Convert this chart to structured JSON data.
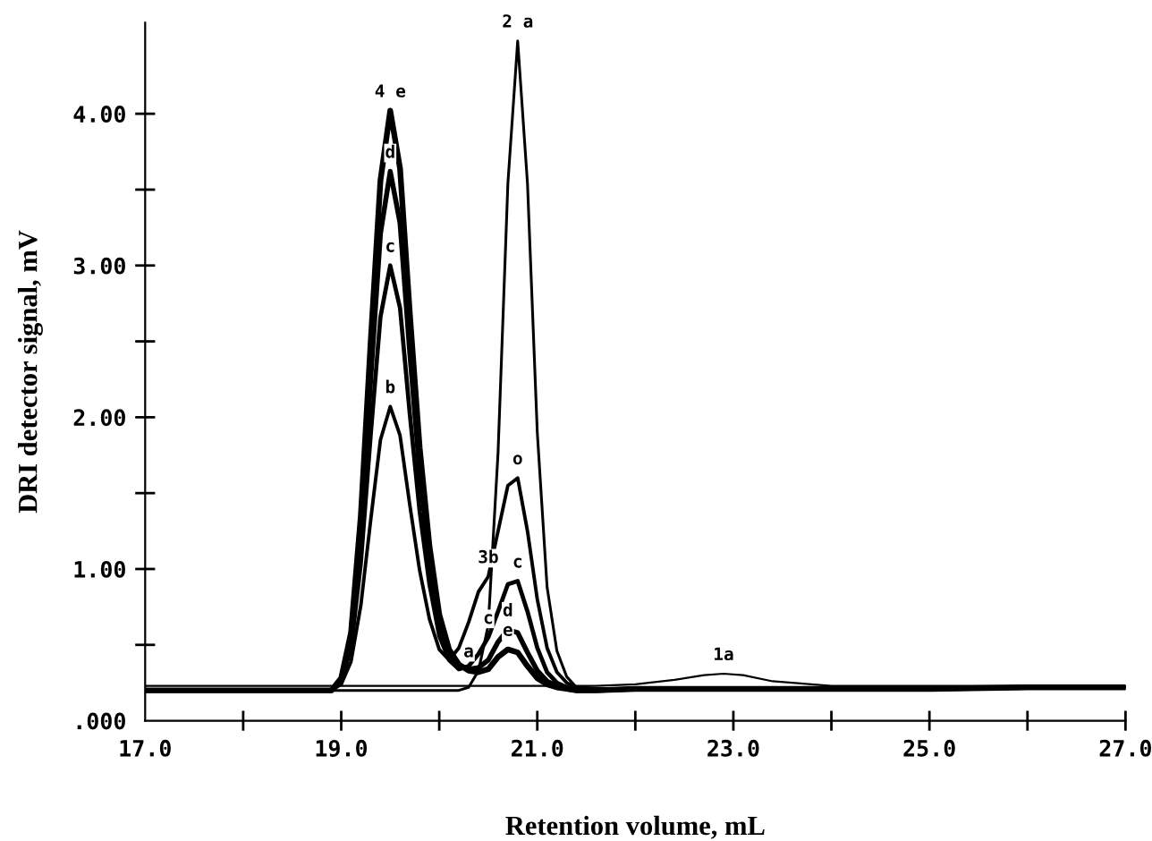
{
  "chart_data": {
    "type": "line",
    "xlabel": "Retention volume, mL",
    "ylabel": "DRI detector signal, mV",
    "x": [
      17.0,
      18.0,
      18.9,
      19.0,
      19.1,
      19.2,
      19.3,
      19.4,
      19.5,
      19.6,
      19.7,
      19.8,
      19.9,
      20.0,
      20.1,
      20.2,
      20.3,
      20.4,
      20.5,
      20.6,
      20.7,
      20.8,
      20.9,
      21.0,
      21.1,
      21.2,
      21.3,
      21.4,
      21.6,
      22.0,
      22.4,
      22.7,
      22.9,
      23.1,
      23.4,
      24.0,
      25.0,
      26.0,
      27.0
    ],
    "series": [
      {
        "color": "#000000",
        "values": [
          0.23,
          0.23,
          0.23,
          0.23,
          0.23,
          0.23,
          0.23,
          0.23,
          0.23,
          0.23,
          0.23,
          0.23,
          0.23,
          0.23,
          0.23,
          0.23,
          0.23,
          0.23,
          0.23,
          0.23,
          0.23,
          0.23,
          0.23,
          0.23,
          0.23,
          0.23,
          0.23,
          0.23,
          0.23,
          0.24,
          0.27,
          0.3,
          0.31,
          0.3,
          0.26,
          0.23,
          0.23,
          0.23,
          0.23
        ]
      },
      {
        "color": "#000000",
        "values": [
          0.2,
          0.2,
          0.2,
          0.2,
          0.2,
          0.2,
          0.2,
          0.2,
          0.2,
          0.2,
          0.2,
          0.2,
          0.2,
          0.2,
          0.2,
          0.2,
          0.22,
          0.33,
          0.63,
          1.77,
          3.54,
          4.48,
          3.54,
          1.9,
          0.88,
          0.46,
          0.29,
          0.22,
          0.21,
          0.21,
          0.21,
          0.21,
          0.21,
          0.21,
          0.21,
          0.21,
          0.21,
          0.22,
          0.22
        ]
      },
      {
        "color": "#000000",
        "values": [
          0.2,
          0.2,
          0.2,
          0.24,
          0.39,
          0.76,
          1.32,
          1.85,
          2.07,
          1.88,
          1.42,
          0.99,
          0.67,
          0.47,
          0.4,
          0.48,
          0.65,
          0.85,
          0.95,
          1.25,
          1.55,
          1.6,
          1.25,
          0.8,
          0.48,
          0.32,
          0.25,
          0.22,
          0.21,
          0.21,
          0.21,
          0.21,
          0.21,
          0.21,
          0.21,
          0.21,
          0.21,
          0.22,
          0.22
        ]
      },
      {
        "color": "#000000",
        "values": [
          0.2,
          0.2,
          0.2,
          0.26,
          0.48,
          1.04,
          1.88,
          2.66,
          3.0,
          2.72,
          2.02,
          1.38,
          0.9,
          0.56,
          0.4,
          0.34,
          0.36,
          0.44,
          0.55,
          0.72,
          0.9,
          0.92,
          0.72,
          0.48,
          0.32,
          0.25,
          0.22,
          0.21,
          0.2,
          0.21,
          0.21,
          0.21,
          0.21,
          0.21,
          0.21,
          0.21,
          0.21,
          0.22,
          0.22
        ]
      },
      {
        "color": "#000000",
        "values": [
          0.2,
          0.2,
          0.2,
          0.27,
          0.54,
          1.23,
          2.25,
          3.21,
          3.62,
          3.28,
          2.42,
          1.64,
          1.05,
          0.64,
          0.44,
          0.36,
          0.34,
          0.35,
          0.4,
          0.52,
          0.6,
          0.58,
          0.45,
          0.33,
          0.26,
          0.23,
          0.21,
          0.2,
          0.2,
          0.21,
          0.21,
          0.21,
          0.21,
          0.21,
          0.21,
          0.21,
          0.21,
          0.22,
          0.22
        ]
      },
      {
        "color": "#000000",
        "values": [
          0.2,
          0.2,
          0.2,
          0.28,
          0.58,
          1.35,
          2.49,
          3.56,
          4.02,
          3.64,
          2.68,
          1.8,
          1.15,
          0.7,
          0.47,
          0.37,
          0.33,
          0.32,
          0.34,
          0.42,
          0.47,
          0.45,
          0.36,
          0.28,
          0.24,
          0.22,
          0.21,
          0.2,
          0.2,
          0.21,
          0.21,
          0.21,
          0.21,
          0.21,
          0.21,
          0.21,
          0.21,
          0.22,
          0.22
        ]
      }
    ],
    "xlim": [
      17.0,
      27.0
    ],
    "xticks": [
      {
        "value": 17.0,
        "label": "17.0"
      },
      {
        "value": 18.0,
        "label": null
      },
      {
        "value": 19.0,
        "label": "19.0"
      },
      {
        "value": 20.0,
        "label": null
      },
      {
        "value": 21.0,
        "label": "21.0"
      },
      {
        "value": 22.0,
        "label": null
      },
      {
        "value": 23.0,
        "label": "23.0"
      },
      {
        "value": 24.0,
        "label": null
      },
      {
        "value": 25.0,
        "label": "25.0"
      },
      {
        "value": 26.0,
        "label": null
      },
      {
        "value": 27.0,
        "label": "27.0"
      }
    ],
    "ylim": [
      0,
      4.6
    ],
    "yticks": [
      {
        "value": 0,
        "label": ".000"
      },
      {
        "value": 0.5,
        "label": null
      },
      {
        "value": 1,
        "label": "1.00"
      },
      {
        "value": 1.5,
        "label": null
      },
      {
        "value": 2,
        "label": "2.00"
      },
      {
        "value": 2.5,
        "label": null
      },
      {
        "value": 3,
        "label": "3.00"
      },
      {
        "value": 3.5,
        "label": null
      },
      {
        "value": 4,
        "label": "4.00"
      }
    ],
    "grid": false,
    "legend": false,
    "marker": "none",
    "line_style": "solid",
    "annotations": [
      {
        "text": "1a",
        "x": 22.9,
        "y": 0.31
      },
      {
        "text": "2 a",
        "x": 20.8,
        "y": 4.48
      },
      {
        "text": "o",
        "x": 20.8,
        "y": 1.6
      },
      {
        "text": "3b",
        "x": 20.5,
        "y": 0.95
      },
      {
        "text": "4 e",
        "x": 19.5,
        "y": 4.02
      },
      {
        "text": "d",
        "x": 19.5,
        "y": 3.62
      },
      {
        "text": "c",
        "x": 19.5,
        "y": 3.0
      },
      {
        "text": "b",
        "x": 19.5,
        "y": 2.07
      },
      {
        "text": "c",
        "x": 20.8,
        "y": 0.92
      },
      {
        "text": "d",
        "x": 20.7,
        "y": 0.6
      },
      {
        "text": "e",
        "x": 20.7,
        "y": 0.47
      },
      {
        "text": "c",
        "x": 20.5,
        "y": 0.55
      },
      {
        "text": "a",
        "x": 20.3,
        "y": 0.33
      }
    ]
  }
}
